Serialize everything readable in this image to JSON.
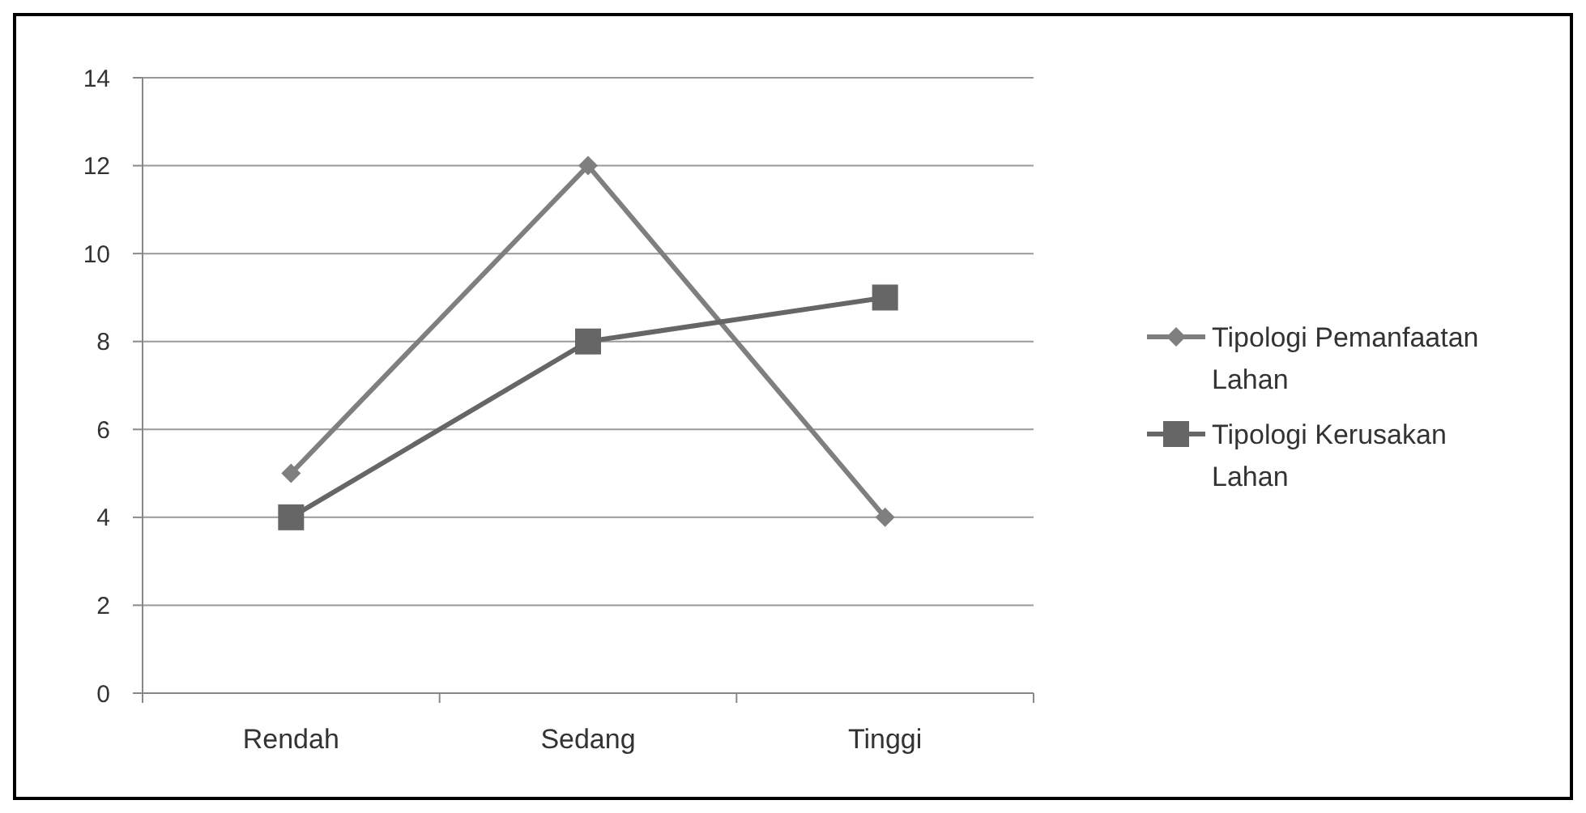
{
  "chart_data": {
    "type": "line",
    "categories": [
      "Rendah",
      "Sedang",
      "Tinggi"
    ],
    "series": [
      {
        "name": "Tipologi Pemanfaatan Lahan",
        "color": "#7f7f7f",
        "values": [
          5,
          12,
          4
        ],
        "marker": "diamond"
      },
      {
        "name": "Tipologi Kerusakan Lahan",
        "color": "#666666",
        "values": [
          4,
          8,
          9
        ],
        "marker": "square"
      }
    ],
    "ylim": [
      0,
      14
    ],
    "yticks": [
      0,
      2,
      4,
      6,
      8,
      10,
      12,
      14
    ],
    "grid": "y",
    "legend": "right",
    "line_style": "solid"
  }
}
